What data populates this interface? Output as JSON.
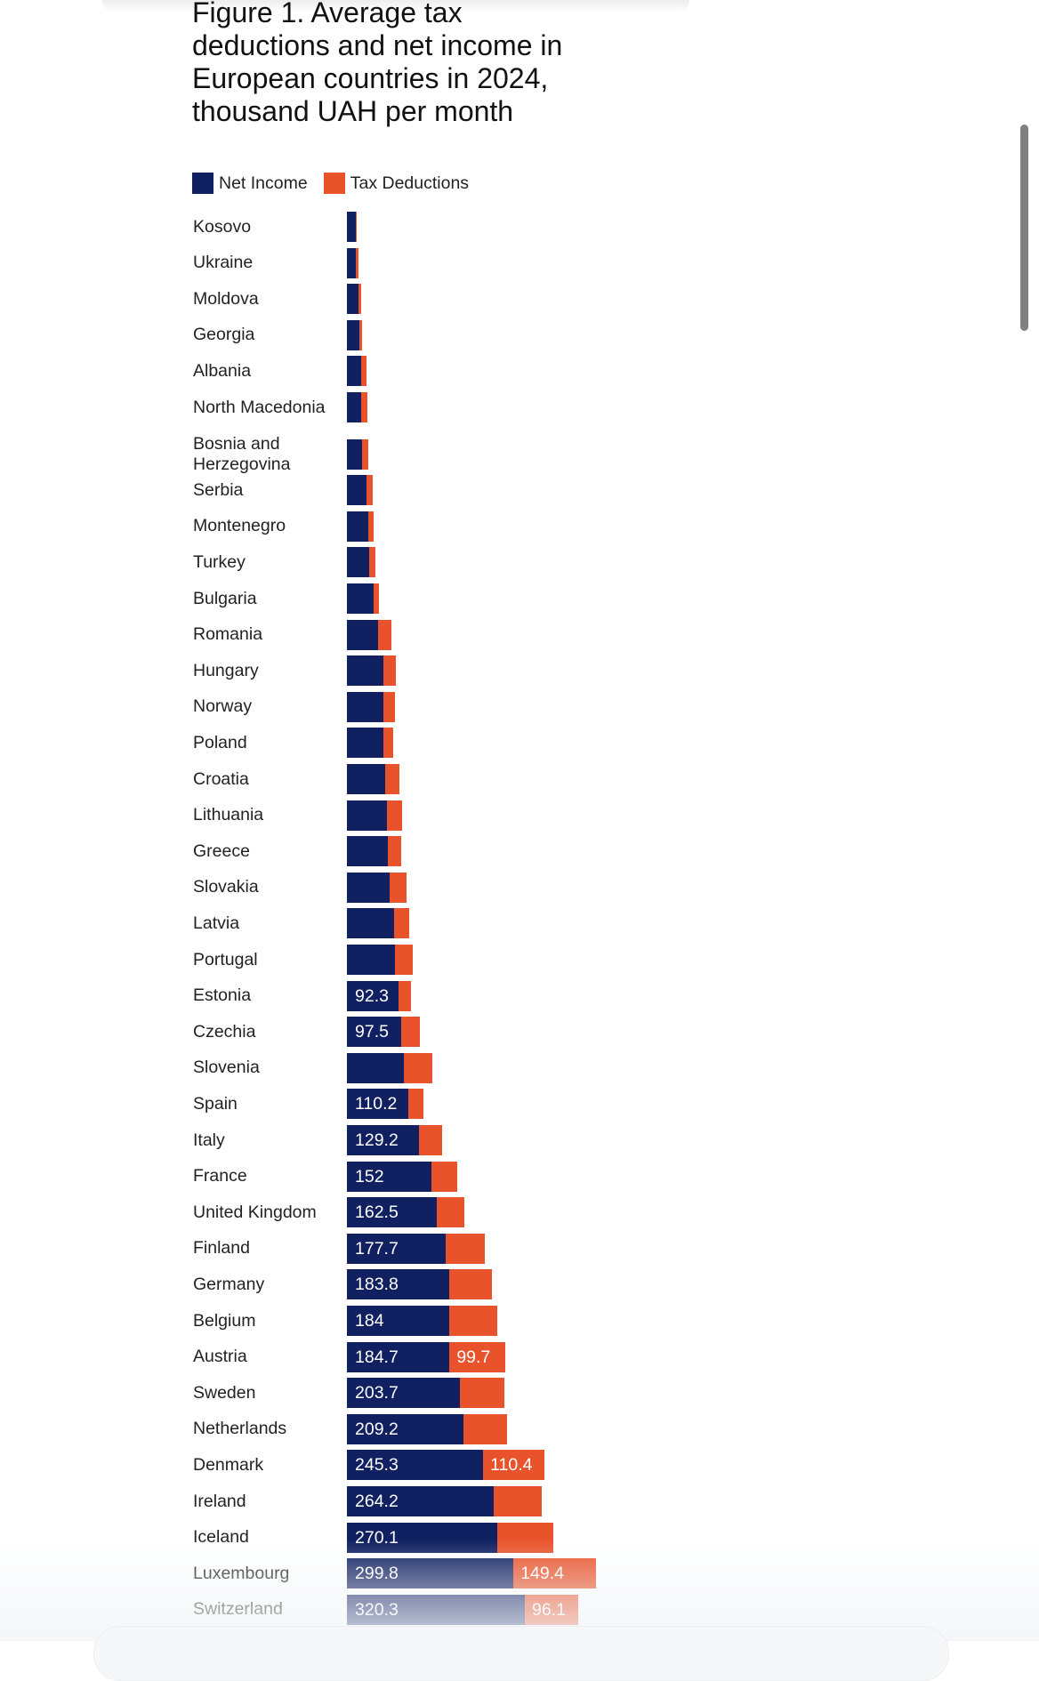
{
  "chart_data": {
    "type": "bar",
    "orientation": "horizontal",
    "stacked": true,
    "title": "Figure 1. Average tax deductions and net income in European countries in 2024, thousand UAH per month",
    "title_lines": [
      "Figure 1. Average tax",
      "deductions and net income in",
      "European countries in 2024,",
      "thousand UAH per month"
    ],
    "xlabel": "",
    "ylabel": "",
    "xlim": [
      0,
      460
    ],
    "grid": false,
    "legend_position": "top-left",
    "legend": [
      {
        "name": "Net Income",
        "color": "#102060"
      },
      {
        "name": "Tax Deductions",
        "color": "#e9532b"
      }
    ],
    "categories": [
      "Kosovo",
      "Ukraine",
      "Moldova",
      "Georgia",
      "Albania",
      "North Macedonia",
      "Bosnia and Herzegovina",
      "Serbia",
      "Montenegro",
      "Turkey",
      "Bulgaria",
      "Romania",
      "Hungary",
      "Norway",
      "Poland",
      "Croatia",
      "Lithuania",
      "Greece",
      "Slovakia",
      "Latvia",
      "Portugal",
      "Estonia",
      "Czechia",
      "Slovenia",
      "Spain",
      "Italy",
      "France",
      "United Kingdom",
      "Finland",
      "Germany",
      "Belgium",
      "Austria",
      "Sweden",
      "Netherlands",
      "Denmark",
      "Ireland",
      "Iceland",
      "Luxembourg",
      "Switzerland"
    ],
    "category_display": [
      "Kosovo",
      "Ukraine",
      "Moldova",
      "Georgia",
      "Albania",
      "North Macedonia",
      "Bosnia and\nHerzegovina",
      "Serbia",
      "Montenegro",
      "Turkey",
      "Bulgaria",
      "Romania",
      "Hungary",
      "Norway",
      "Poland",
      "Croatia",
      "Lithuania",
      "Greece",
      "Slovakia",
      "Latvia",
      "Portugal",
      "Estonia",
      "Czechia",
      "Slovenia",
      "Spain",
      "Italy",
      "France",
      "United Kingdom",
      "Finland",
      "Germany",
      "Belgium",
      "Austria",
      "Sweden",
      "Netherlands",
      "Denmark",
      "Ireland",
      "Iceland",
      "Luxembourg",
      "Switzerland"
    ],
    "series": [
      {
        "name": "Net Income",
        "color": "#102060",
        "values": [
          16.0,
          15.5,
          20.3,
          21.9,
          25.1,
          26.2,
          27.2,
          35.2,
          38.4,
          39.5,
          47.5,
          55.5,
          66.2,
          66.2,
          66.2,
          68.9,
          72.1,
          74.2,
          76.9,
          84.3,
          86.5,
          92.3,
          97.5,
          103.0,
          110.2,
          129.2,
          152,
          162.5,
          177.7,
          183.8,
          184,
          184.7,
          203.7,
          209.2,
          245.3,
          264.2,
          270.1,
          299.8,
          320.3
        ],
        "labels": [
          "",
          "",
          "",
          "",
          "",
          "",
          "",
          "",
          "",
          "",
          "",
          "",
          "",
          "",
          "",
          "",
          "",
          "",
          "",
          "",
          "",
          "92.3",
          "97.5",
          "",
          "110.2",
          "129.2",
          "152",
          "162.5",
          "177.7",
          "183.8",
          "184",
          "184.7",
          "203.7",
          "209.2",
          "245.3",
          "264.2",
          "270.1",
          "299.8",
          "320.3"
        ]
      },
      {
        "name": "Tax Deductions",
        "color": "#e9532b",
        "values": [
          2.1,
          4.8,
          4.8,
          5.3,
          9.6,
          10.7,
          11.7,
          11.2,
          9.6,
          11.7,
          10.1,
          24.6,
          22.4,
          20.3,
          16.5,
          25.6,
          26.7,
          23.0,
          30.4,
          27.8,
          32.0,
          23.0,
          33.3,
          50.7,
          27.5,
          42.2,
          46.0,
          48.9,
          70.0,
          76.7,
          86.1,
          99.7,
          79.3,
          79.1,
          110.4,
          86.5,
          101.5,
          149.4,
          96.1
        ],
        "labels": [
          "",
          "",
          "",
          "",
          "",
          "",
          "",
          "",
          "",
          "",
          "",
          "",
          "",
          "",
          "",
          "",
          "",
          "",
          "",
          "",
          "",
          "",
          "",
          "",
          "",
          "",
          "",
          "",
          "",
          "",
          "",
          "99.7",
          "",
          "",
          "110.4",
          "",
          "",
          "149.4",
          "96.1"
        ]
      }
    ]
  }
}
